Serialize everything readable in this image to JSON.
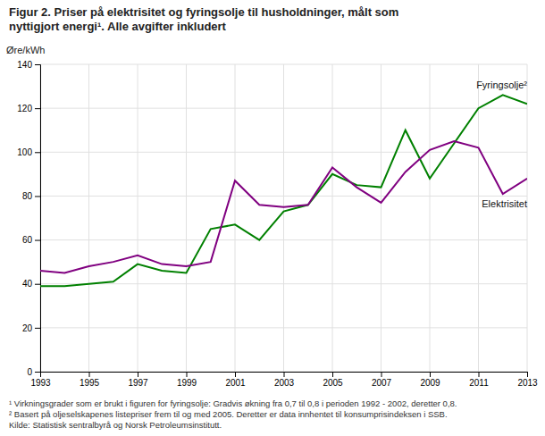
{
  "chart_data": {
    "type": "line",
    "title": [
      "Figur 2. Priser på elektrisitet og fyringsolje til husholdninger, målt som",
      "nyttigjort energi¹.  Alle avgifter inkludert"
    ],
    "ylabel": "Øre/kWh",
    "annotations": [
      "¹ Virkningsgrader som er brukt i figuren for fyringsolje: Gradvis økning fra 0,7 til 0,8 i perioden 1992 - 2002, deretter 0,8.",
      "² Basert på oljeselskapenes listepriser frem til og med 2005. Deretter er data innhentet til konsumprisindeksen i SSB.",
      "Kilde: Statistisk sentralbyrå og Norsk Petroleumsinstitutt."
    ],
    "x": [
      1993,
      1994,
      1995,
      1996,
      1997,
      1998,
      1999,
      2000,
      2001,
      2002,
      2003,
      2004,
      2005,
      2006,
      2007,
      2008,
      2009,
      2010,
      2011,
      2012,
      2013
    ],
    "series": [
      {
        "name": "Fyringsolje²",
        "color": "#008000",
        "values": [
          39,
          39,
          40,
          41,
          49,
          46,
          45,
          65,
          67,
          60,
          73,
          76,
          90,
          85,
          84,
          110,
          88,
          104,
          120,
          126,
          122
        ]
      },
      {
        "name": "Elektrisitet",
        "color": "#800080",
        "values": [
          46,
          45,
          48,
          50,
          53,
          49,
          48,
          50,
          87,
          76,
          75,
          76,
          93,
          84,
          77,
          91,
          101,
          105,
          102,
          81,
          88
        ]
      }
    ],
    "xlim": [
      1993,
      2013
    ],
    "xticks": [
      1993,
      1995,
      1997,
      1999,
      2001,
      2003,
      2005,
      2007,
      2009,
      2011,
      2013
    ],
    "ylim": [
      0,
      140
    ],
    "yticks": [
      0,
      20,
      40,
      60,
      80,
      100,
      120,
      140
    ],
    "grid": true
  }
}
